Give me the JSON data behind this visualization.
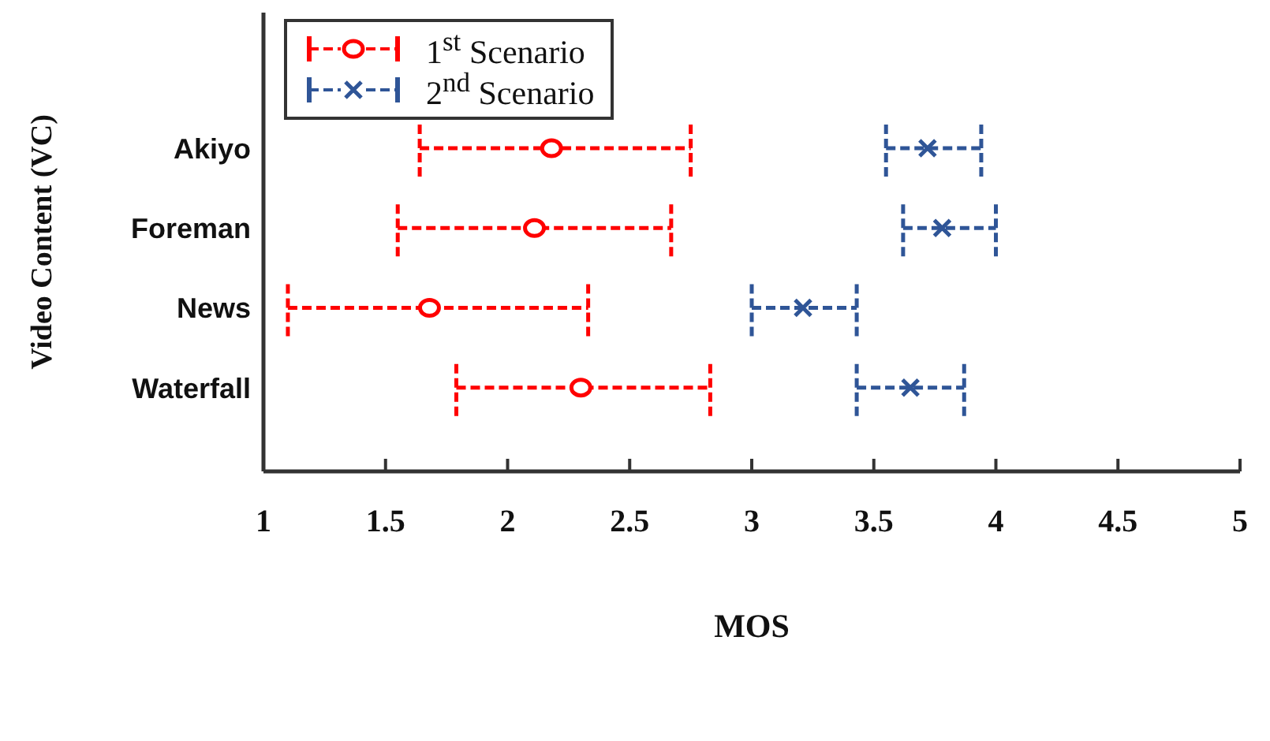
{
  "chart_data": {
    "type": "scatter",
    "xlabel": "MOS",
    "ylabel": "Video Content (VC)",
    "categories": [
      "Akiyo",
      "Foreman",
      "News",
      "Waterfall"
    ],
    "xlim": [
      1,
      5
    ],
    "xticks": [
      1,
      1.5,
      2,
      2.5,
      3,
      3.5,
      4,
      4.5,
      5
    ],
    "orientation": "horizontal",
    "grid": false,
    "legend": "top left",
    "line_style": "dashed",
    "series": [
      {
        "name": "1$^{st}$ Scenario",
        "color": "#ff0000",
        "marker": "circle",
        "values": [
          2.18,
          2.11,
          1.68,
          2.3
        ],
        "errors": [
          [
            1.64,
            2.75
          ],
          [
            1.55,
            2.67
          ],
          [
            1.1,
            2.33
          ],
          [
            1.79,
            2.83
          ]
        ]
      },
      {
        "name": "2$^{nd}$ Scenario",
        "color": "#2f5597",
        "marker": "cross",
        "values": [
          3.72,
          3.78,
          3.21,
          3.65
        ],
        "errors": [
          [
            3.55,
            3.94
          ],
          [
            3.62,
            4.0
          ],
          [
            3.0,
            3.43
          ],
          [
            3.43,
            3.87
          ]
        ]
      }
    ]
  }
}
